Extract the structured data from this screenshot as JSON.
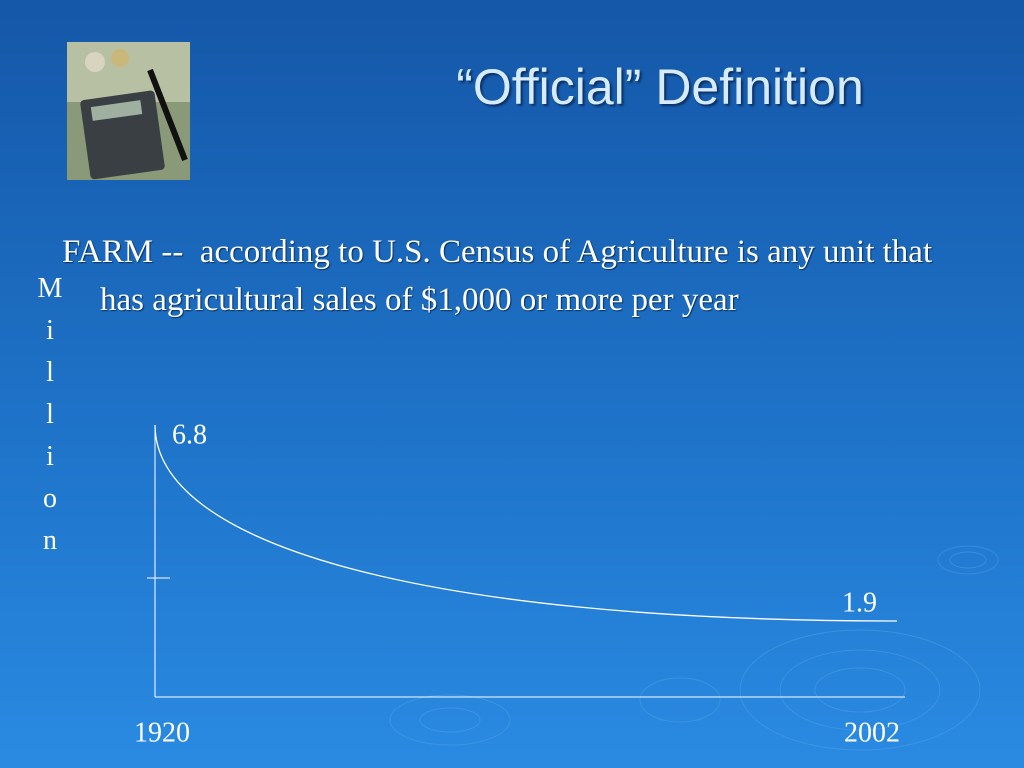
{
  "title": "“Official” Definition",
  "body": "FARM --  according to U.S. Census of Agriculture is any unit that has agricultural sales of $1,000 or more per year",
  "chart_data": {
    "type": "line",
    "ylabel": "Million",
    "x": [
      1920,
      2002
    ],
    "values": [
      6.8,
      1.9
    ],
    "color": "#ffffff",
    "xlim": [
      1920,
      2002
    ],
    "xticks": [
      1920,
      2002
    ],
    "ylim": [
      0,
      7
    ]
  }
}
